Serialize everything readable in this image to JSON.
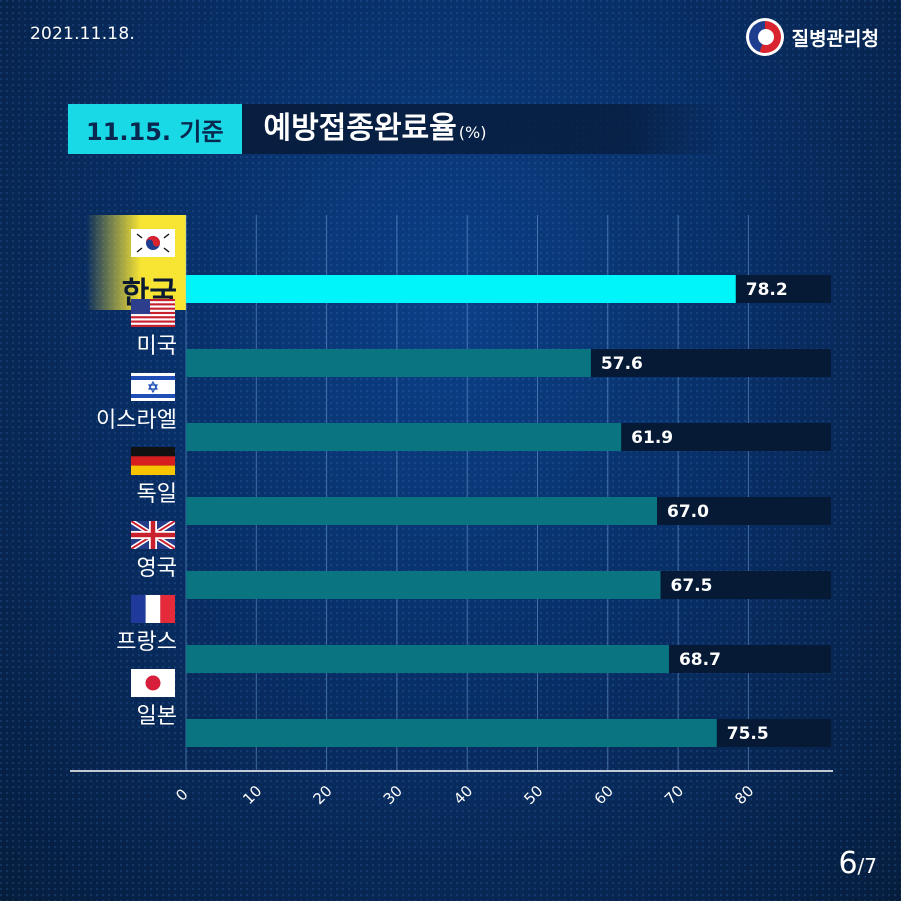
{
  "header": {
    "date": "2021.11.18.",
    "org_name": "질병관리청",
    "logo_icon": "kdca-logo-icon"
  },
  "title": {
    "tag": "11.15. 기준",
    "main": "예방접종완료율",
    "unit": "(%)"
  },
  "page": {
    "current": "6",
    "total": "/7"
  },
  "colors": {
    "highlight_bar": "#00f5fb",
    "bar": "#0a7481",
    "track": "#061a35",
    "tag_bg": "#19d9e6",
    "highlight_label_bg": "#f7e433"
  },
  "chart_data": {
    "type": "bar",
    "orientation": "horizontal",
    "categories": [
      "한국",
      "미국",
      "이스라엘",
      "독일",
      "영국",
      "프랑스",
      "일본"
    ],
    "values": [
      78.2,
      57.6,
      61.9,
      67.0,
      67.5,
      68.7,
      75.5
    ],
    "value_labels": [
      "78.2",
      "57.6",
      "61.9",
      "67.0",
      "67.5",
      "68.7",
      "75.5"
    ],
    "flags": [
      "korea-flag-icon",
      "usa-flag-icon",
      "israel-flag-icon",
      "germany-flag-icon",
      "uk-flag-icon",
      "france-flag-icon",
      "japan-flag-icon"
    ],
    "highlight_index": 0,
    "xticks": [
      "0",
      "10",
      "20",
      "30",
      "40",
      "50",
      "60",
      "70",
      "80"
    ],
    "xlim": [
      0,
      80
    ],
    "grid": true
  }
}
